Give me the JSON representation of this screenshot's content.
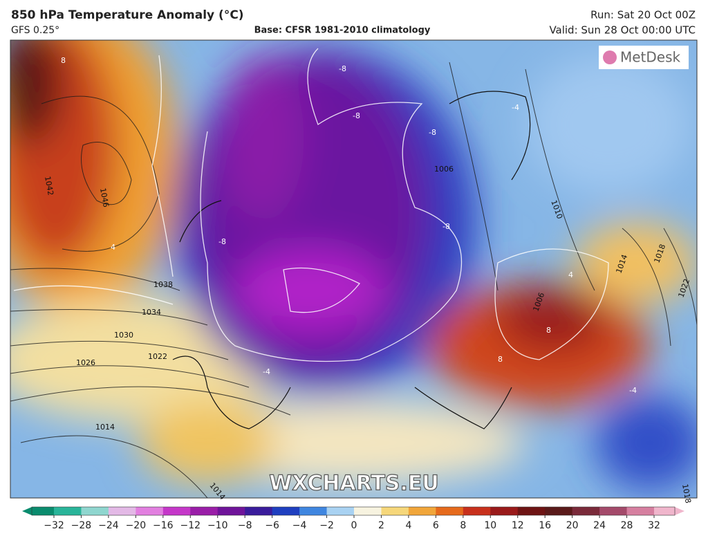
{
  "header": {
    "title": "850 hPa Temperature Anomaly (°C)",
    "model": "GFS 0.25°",
    "base": "Base: CFSR 1981-2010 climatology",
    "run": "Run: Sat 20 Oct 00Z",
    "valid": "Valid: Sun 28 Oct 00:00 UTC"
  },
  "logo": "MetDesk",
  "watermark": "WXCHARTS.EU",
  "isobar_labels": [
    "1046",
    "1042",
    "1038",
    "1034",
    "1030",
    "1026",
    "1022",
    "1014",
    "1014",
    "1006",
    "1010",
    "1014",
    "1018",
    "1022",
    "1006",
    "1018"
  ],
  "anomaly_labels": [
    "8",
    "4",
    "-8",
    "-8",
    "-8",
    "-8",
    "-8",
    "-4",
    "-4",
    "8",
    "8",
    "4",
    "-4"
  ],
  "colorbar": {
    "labels": [
      "−32",
      "−28",
      "−24",
      "−20",
      "−16",
      "−12",
      "−10",
      "−8",
      "−6",
      "−4",
      "−2",
      "0",
      "2",
      "4",
      "6",
      "8",
      "10",
      "12",
      "16",
      "20",
      "24",
      "28",
      "32"
    ],
    "colors": [
      "#0a8c6e",
      "#29b59a",
      "#8fd6cf",
      "#e3b9e6",
      "#e27fe0",
      "#c537c9",
      "#9a1ea8",
      "#6f149a",
      "#3a1c9c",
      "#1f3fc0",
      "#3f86e0",
      "#a9d2f2",
      "#f7f3e0",
      "#f6d77a",
      "#f1a63a",
      "#e66a1c",
      "#c8301c",
      "#9a1a1a",
      "#6e1414",
      "#5a1a1a",
      "#7a2a3a",
      "#a44a6a",
      "#d67fa0",
      "#f0b6cc"
    ]
  }
}
